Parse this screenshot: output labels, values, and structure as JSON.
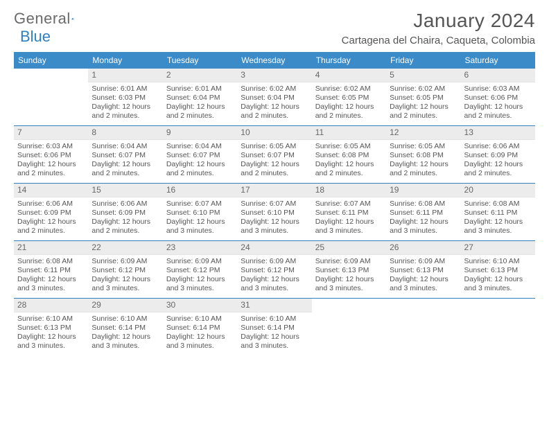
{
  "logo": {
    "text1": "General",
    "text2": "Blue"
  },
  "title": "January 2024",
  "location": "Cartagena del Chaira, Caqueta, Colombia",
  "weekdays": [
    "Sunday",
    "Monday",
    "Tuesday",
    "Wednesday",
    "Thursday",
    "Friday",
    "Saturday"
  ],
  "weeks": [
    [
      {
        "n": "",
        "sr": "",
        "ss": "",
        "dl": ""
      },
      {
        "n": "1",
        "sr": "Sunrise: 6:01 AM",
        "ss": "Sunset: 6:03 PM",
        "dl": "Daylight: 12 hours and 2 minutes."
      },
      {
        "n": "2",
        "sr": "Sunrise: 6:01 AM",
        "ss": "Sunset: 6:04 PM",
        "dl": "Daylight: 12 hours and 2 minutes."
      },
      {
        "n": "3",
        "sr": "Sunrise: 6:02 AM",
        "ss": "Sunset: 6:04 PM",
        "dl": "Daylight: 12 hours and 2 minutes."
      },
      {
        "n": "4",
        "sr": "Sunrise: 6:02 AM",
        "ss": "Sunset: 6:05 PM",
        "dl": "Daylight: 12 hours and 2 minutes."
      },
      {
        "n": "5",
        "sr": "Sunrise: 6:02 AM",
        "ss": "Sunset: 6:05 PM",
        "dl": "Daylight: 12 hours and 2 minutes."
      },
      {
        "n": "6",
        "sr": "Sunrise: 6:03 AM",
        "ss": "Sunset: 6:06 PM",
        "dl": "Daylight: 12 hours and 2 minutes."
      }
    ],
    [
      {
        "n": "7",
        "sr": "Sunrise: 6:03 AM",
        "ss": "Sunset: 6:06 PM",
        "dl": "Daylight: 12 hours and 2 minutes."
      },
      {
        "n": "8",
        "sr": "Sunrise: 6:04 AM",
        "ss": "Sunset: 6:07 PM",
        "dl": "Daylight: 12 hours and 2 minutes."
      },
      {
        "n": "9",
        "sr": "Sunrise: 6:04 AM",
        "ss": "Sunset: 6:07 PM",
        "dl": "Daylight: 12 hours and 2 minutes."
      },
      {
        "n": "10",
        "sr": "Sunrise: 6:05 AM",
        "ss": "Sunset: 6:07 PM",
        "dl": "Daylight: 12 hours and 2 minutes."
      },
      {
        "n": "11",
        "sr": "Sunrise: 6:05 AM",
        "ss": "Sunset: 6:08 PM",
        "dl": "Daylight: 12 hours and 2 minutes."
      },
      {
        "n": "12",
        "sr": "Sunrise: 6:05 AM",
        "ss": "Sunset: 6:08 PM",
        "dl": "Daylight: 12 hours and 2 minutes."
      },
      {
        "n": "13",
        "sr": "Sunrise: 6:06 AM",
        "ss": "Sunset: 6:09 PM",
        "dl": "Daylight: 12 hours and 2 minutes."
      }
    ],
    [
      {
        "n": "14",
        "sr": "Sunrise: 6:06 AM",
        "ss": "Sunset: 6:09 PM",
        "dl": "Daylight: 12 hours and 2 minutes."
      },
      {
        "n": "15",
        "sr": "Sunrise: 6:06 AM",
        "ss": "Sunset: 6:09 PM",
        "dl": "Daylight: 12 hours and 2 minutes."
      },
      {
        "n": "16",
        "sr": "Sunrise: 6:07 AM",
        "ss": "Sunset: 6:10 PM",
        "dl": "Daylight: 12 hours and 3 minutes."
      },
      {
        "n": "17",
        "sr": "Sunrise: 6:07 AM",
        "ss": "Sunset: 6:10 PM",
        "dl": "Daylight: 12 hours and 3 minutes."
      },
      {
        "n": "18",
        "sr": "Sunrise: 6:07 AM",
        "ss": "Sunset: 6:11 PM",
        "dl": "Daylight: 12 hours and 3 minutes."
      },
      {
        "n": "19",
        "sr": "Sunrise: 6:08 AM",
        "ss": "Sunset: 6:11 PM",
        "dl": "Daylight: 12 hours and 3 minutes."
      },
      {
        "n": "20",
        "sr": "Sunrise: 6:08 AM",
        "ss": "Sunset: 6:11 PM",
        "dl": "Daylight: 12 hours and 3 minutes."
      }
    ],
    [
      {
        "n": "21",
        "sr": "Sunrise: 6:08 AM",
        "ss": "Sunset: 6:11 PM",
        "dl": "Daylight: 12 hours and 3 minutes."
      },
      {
        "n": "22",
        "sr": "Sunrise: 6:09 AM",
        "ss": "Sunset: 6:12 PM",
        "dl": "Daylight: 12 hours and 3 minutes."
      },
      {
        "n": "23",
        "sr": "Sunrise: 6:09 AM",
        "ss": "Sunset: 6:12 PM",
        "dl": "Daylight: 12 hours and 3 minutes."
      },
      {
        "n": "24",
        "sr": "Sunrise: 6:09 AM",
        "ss": "Sunset: 6:12 PM",
        "dl": "Daylight: 12 hours and 3 minutes."
      },
      {
        "n": "25",
        "sr": "Sunrise: 6:09 AM",
        "ss": "Sunset: 6:13 PM",
        "dl": "Daylight: 12 hours and 3 minutes."
      },
      {
        "n": "26",
        "sr": "Sunrise: 6:09 AM",
        "ss": "Sunset: 6:13 PM",
        "dl": "Daylight: 12 hours and 3 minutes."
      },
      {
        "n": "27",
        "sr": "Sunrise: 6:10 AM",
        "ss": "Sunset: 6:13 PM",
        "dl": "Daylight: 12 hours and 3 minutes."
      }
    ],
    [
      {
        "n": "28",
        "sr": "Sunrise: 6:10 AM",
        "ss": "Sunset: 6:13 PM",
        "dl": "Daylight: 12 hours and 3 minutes."
      },
      {
        "n": "29",
        "sr": "Sunrise: 6:10 AM",
        "ss": "Sunset: 6:14 PM",
        "dl": "Daylight: 12 hours and 3 minutes."
      },
      {
        "n": "30",
        "sr": "Sunrise: 6:10 AM",
        "ss": "Sunset: 6:14 PM",
        "dl": "Daylight: 12 hours and 3 minutes."
      },
      {
        "n": "31",
        "sr": "Sunrise: 6:10 AM",
        "ss": "Sunset: 6:14 PM",
        "dl": "Daylight: 12 hours and 3 minutes."
      },
      {
        "n": "",
        "sr": "",
        "ss": "",
        "dl": ""
      },
      {
        "n": "",
        "sr": "",
        "ss": "",
        "dl": ""
      },
      {
        "n": "",
        "sr": "",
        "ss": "",
        "dl": ""
      }
    ]
  ]
}
